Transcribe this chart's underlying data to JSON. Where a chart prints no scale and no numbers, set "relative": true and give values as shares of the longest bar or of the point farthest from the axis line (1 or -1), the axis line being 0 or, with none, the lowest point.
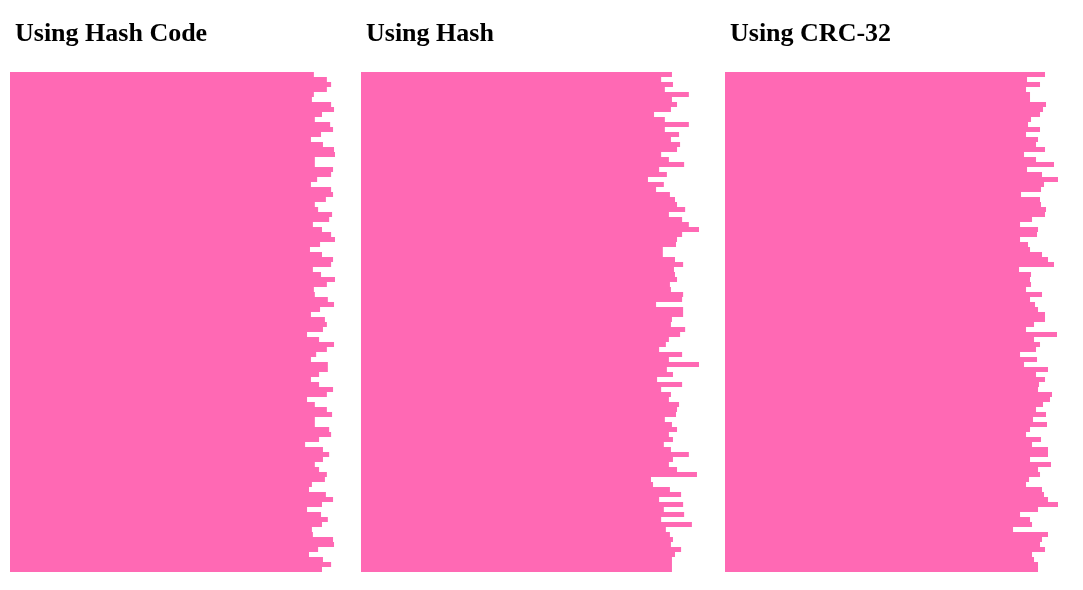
{
  "chart_data": [
    {
      "type": "bar",
      "orientation": "horizontal",
      "relative": true,
      "title": "Using Hash Code",
      "color": "#ff69b4",
      "categories": [
        null,
        null,
        null,
        null,
        null,
        null,
        null,
        null,
        null,
        null,
        null,
        null,
        null,
        null,
        null,
        null,
        null,
        null,
        null,
        null,
        null,
        null,
        null,
        null,
        null,
        null,
        null,
        null,
        null,
        null,
        null,
        null,
        null,
        null,
        null,
        null,
        null,
        null,
        null,
        null,
        null,
        null,
        null,
        null,
        null,
        null,
        null,
        null,
        null,
        null,
        null,
        null,
        null,
        null,
        null,
        null,
        null,
        null,
        null,
        null,
        null,
        null,
        null,
        null,
        null,
        null,
        null,
        null,
        null,
        null,
        null,
        null,
        null,
        null,
        null,
        null,
        null,
        null,
        null,
        null,
        null,
        null,
        null,
        null,
        null,
        null,
        null,
        null,
        null,
        null,
        null,
        null,
        null,
        null,
        null,
        null,
        null,
        null,
        null,
        null
      ],
      "values": [
        0.935,
        0.975,
        0.988,
        0.975,
        0.935,
        0.929,
        0.988,
        0.997,
        0.96,
        0.938,
        0.985,
        0.994,
        0.957,
        0.926,
        0.963,
        0.997,
        1,
        0.938,
        0.938,
        0.994,
        0.988,
        0.945,
        0.926,
        0.988,
        0.994,
        0.972,
        0.938,
        0.948,
        0.991,
        0.982,
        0.932,
        0.96,
        0.988,
        1,
        0.954,
        0.923,
        0.96,
        0.994,
        0.988,
        0.932,
        0.957,
        1,
        0.975,
        0.935,
        0.938,
        0.978,
        0.997,
        0.954,
        0.926,
        0.969,
        0.975,
        0.963,
        0.914,
        0.951,
        0.997,
        0.975,
        0.942,
        0.926,
        0.978,
        0.978,
        0.951,
        0.926,
        0.951,
        0.994,
        0.975,
        0.914,
        0.938,
        0.975,
        0.991,
        0.938,
        0.938,
        0.982,
        0.988,
        0.951,
        0.908,
        0.963,
        0.982,
        0.963,
        0.938,
        0.951,
        0.975,
        0.969,
        0.929,
        0.92,
        0.972,
        0.994,
        0.96,
        0.914,
        0.957,
        0.978,
        0.96,
        0.929,
        0.932,
        0.994,
        0.997,
        0.948,
        0.92,
        0.963,
        0.988,
        0.96
      ]
    },
    {
      "type": "bar",
      "orientation": "horizontal",
      "relative": true,
      "title": "Using Hash",
      "color": "#ff69b4",
      "categories": [
        null,
        null,
        null,
        null,
        null,
        null,
        null,
        null,
        null,
        null,
        null,
        null,
        null,
        null,
        null,
        null,
        null,
        null,
        null,
        null,
        null,
        null,
        null,
        null,
        null,
        null,
        null,
        null,
        null,
        null,
        null,
        null,
        null,
        null,
        null,
        null,
        null,
        null,
        null,
        null,
        null,
        null,
        null,
        null,
        null,
        null,
        null,
        null,
        null,
        null,
        null,
        null,
        null,
        null,
        null,
        null,
        null,
        null,
        null,
        null,
        null,
        null,
        null,
        null,
        null,
        null,
        null,
        null,
        null,
        null,
        null,
        null,
        null,
        null,
        null,
        null,
        null,
        null,
        null,
        null,
        null,
        null,
        null,
        null,
        null,
        null,
        null,
        null,
        null,
        null,
        null,
        null,
        null,
        null,
        null,
        null,
        null,
        null,
        null,
        null
      ],
      "values": [
        0.92,
        0.888,
        0.923,
        0.899,
        0.97,
        0.92,
        0.935,
        0.917,
        0.867,
        0.899,
        0.97,
        0.899,
        0.941,
        0.917,
        0.944,
        0.935,
        0.888,
        0.911,
        0.956,
        0.882,
        0.905,
        0.849,
        0.896,
        0.873,
        0.914,
        0.929,
        0.935,
        0.959,
        0.911,
        0.95,
        0.97,
        1,
        0.95,
        0.935,
        0.932,
        0.893,
        0.893,
        0.929,
        0.953,
        0.926,
        0.929,
        0.935,
        0.914,
        0.917,
        0.953,
        0.95,
        0.873,
        0.953,
        0.953,
        0.92,
        0.917,
        0.959,
        0.944,
        0.911,
        0.902,
        0.882,
        0.95,
        0.911,
        1,
        0.905,
        0.923,
        0.876,
        0.95,
        0.888,
        0.917,
        0.911,
        0.941,
        0.935,
        0.932,
        0.899,
        0.92,
        0.935,
        0.911,
        0.923,
        0.896,
        0.917,
        0.97,
        0.923,
        0.911,
        0.935,
        0.994,
        0.858,
        0.864,
        0.914,
        0.947,
        0.882,
        0.953,
        0.896,
        0.956,
        0.888,
        0.979,
        0.902,
        0.914,
        0.923,
        0.917,
        0.947,
        0.929,
        0.92,
        0.92,
        0.92
      ]
    },
    {
      "type": "bar",
      "orientation": "horizontal",
      "relative": true,
      "title": "Using CRC-32",
      "color": "#ff69b4",
      "categories": [
        null,
        null,
        null,
        null,
        null,
        null,
        null,
        null,
        null,
        null,
        null,
        null,
        null,
        null,
        null,
        null,
        null,
        null,
        null,
        null,
        null,
        null,
        null,
        null,
        null,
        null,
        null,
        null,
        null,
        null,
        null,
        null,
        null,
        null,
        null,
        null,
        null,
        null,
        null,
        null,
        null,
        null,
        null,
        null,
        null,
        null,
        null,
        null,
        null,
        null,
        null,
        null,
        null,
        null,
        null,
        null,
        null,
        null,
        null,
        null,
        null,
        null,
        null,
        null,
        null,
        null,
        null,
        null,
        null,
        null,
        null,
        null,
        null,
        null,
        null,
        null,
        null,
        null,
        null,
        null,
        null,
        null,
        null,
        null,
        null,
        null,
        null,
        null,
        null,
        null,
        null,
        null,
        null,
        null,
        null,
        null,
        null,
        null,
        null,
        null
      ],
      "values": [
        0.961,
        0.907,
        0.946,
        0.904,
        0.916,
        0.916,
        0.964,
        0.955,
        0.946,
        0.919,
        0.91,
        0.946,
        0.904,
        0.94,
        0.934,
        0.961,
        0.898,
        0.934,
        0.988,
        0.907,
        0.952,
        1,
        0.958,
        0.949,
        0.889,
        0.946,
        0.949,
        0.964,
        0.961,
        0.922,
        0.886,
        0.94,
        0.937,
        0.886,
        0.91,
        0.916,
        0.952,
        0.97,
        0.988,
        0.883,
        0.919,
        0.916,
        0.919,
        0.904,
        0.952,
        0.916,
        0.931,
        0.94,
        0.961,
        0.961,
        0.928,
        0.904,
        0.997,
        0.928,
        0.946,
        0.934,
        0.886,
        0.937,
        0.898,
        0.97,
        0.934,
        0.961,
        0.943,
        0.94,
        0.982,
        0.976,
        0.955,
        0.934,
        0.964,
        0.925,
        0.967,
        0.916,
        0.904,
        0.949,
        0.922,
        0.97,
        0.97,
        0.916,
        0.979,
        0.94,
        0.946,
        0.913,
        0.904,
        0.952,
        0.958,
        0.97,
        1,
        0.94,
        0.886,
        0.916,
        0.922,
        0.865,
        0.97,
        0.952,
        0.946,
        0.961,
        0.922,
        0.928,
        0.94,
        0.94
      ]
    }
  ]
}
